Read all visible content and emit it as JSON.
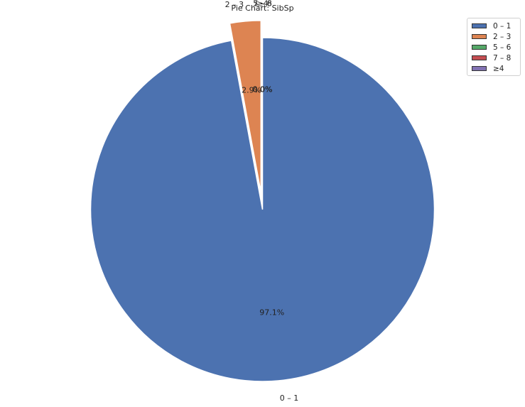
{
  "chart_data": {
    "type": "pie",
    "title": "Pie Chart: SibSp",
    "categories": [
      "0 – 1",
      "2 – 3",
      "5 – 6",
      "7 – 8",
      "≥4"
    ],
    "values": [
      97.1,
      2.9,
      0.0,
      0.0,
      0.0
    ],
    "percent_labels": [
      "97.1%",
      "2.9%",
      "0.0%",
      "0.0%",
      "0.0%"
    ],
    "colors": [
      "#4c72b0",
      "#dd8452",
      "#55a868",
      "#c44e52",
      "#8172b3"
    ],
    "start_angle_deg": 90,
    "direction": "clockwise",
    "explode": [
      0,
      0.1,
      0.1,
      0.1,
      0.1
    ],
    "legend": "top-right"
  }
}
